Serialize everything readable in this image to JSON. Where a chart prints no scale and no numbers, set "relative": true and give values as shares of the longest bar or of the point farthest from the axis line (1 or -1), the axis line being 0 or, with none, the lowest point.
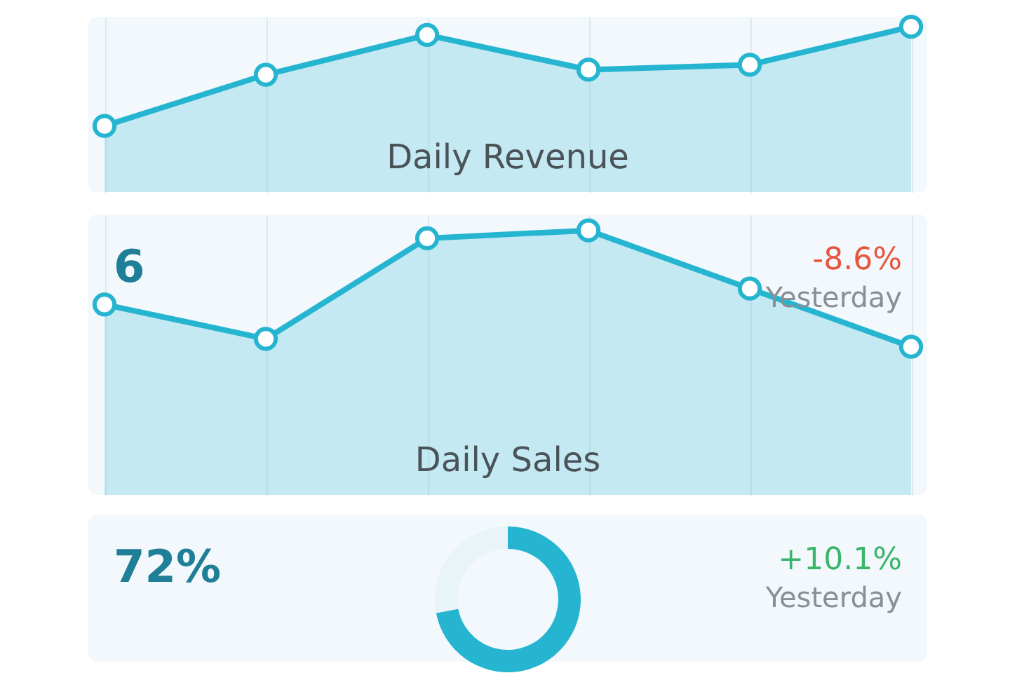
{
  "chart_data": [
    {
      "type": "area",
      "title": "Daily Revenue",
      "relative": true,
      "categories": [
        null,
        null,
        null,
        null,
        null,
        null
      ],
      "values": [
        0.4,
        0.71,
        0.95,
        0.74,
        0.77,
        1.0
      ],
      "color": "#26b5d0",
      "marker": "circle",
      "grid": "x"
    },
    {
      "type": "area",
      "title": "Daily Sales",
      "relative": true,
      "categories": [
        null,
        null,
        null,
        null,
        null,
        null
      ],
      "values": [
        0.72,
        0.59,
        0.97,
        1.0,
        0.78,
        0.56
      ],
      "color": "#26b5d0",
      "marker": "circle",
      "grid": "x",
      "annotations": [
        "6",
        "-8.6%",
        "Yesterday"
      ]
    },
    {
      "type": "donut",
      "categories": [
        null,
        null
      ],
      "values": [
        72,
        28
      ],
      "colors": [
        "#26b5d0",
        "#e9f4f9"
      ],
      "annotations": [
        "72%",
        "+10.1%",
        "Yesterday"
      ]
    }
  ]
}
